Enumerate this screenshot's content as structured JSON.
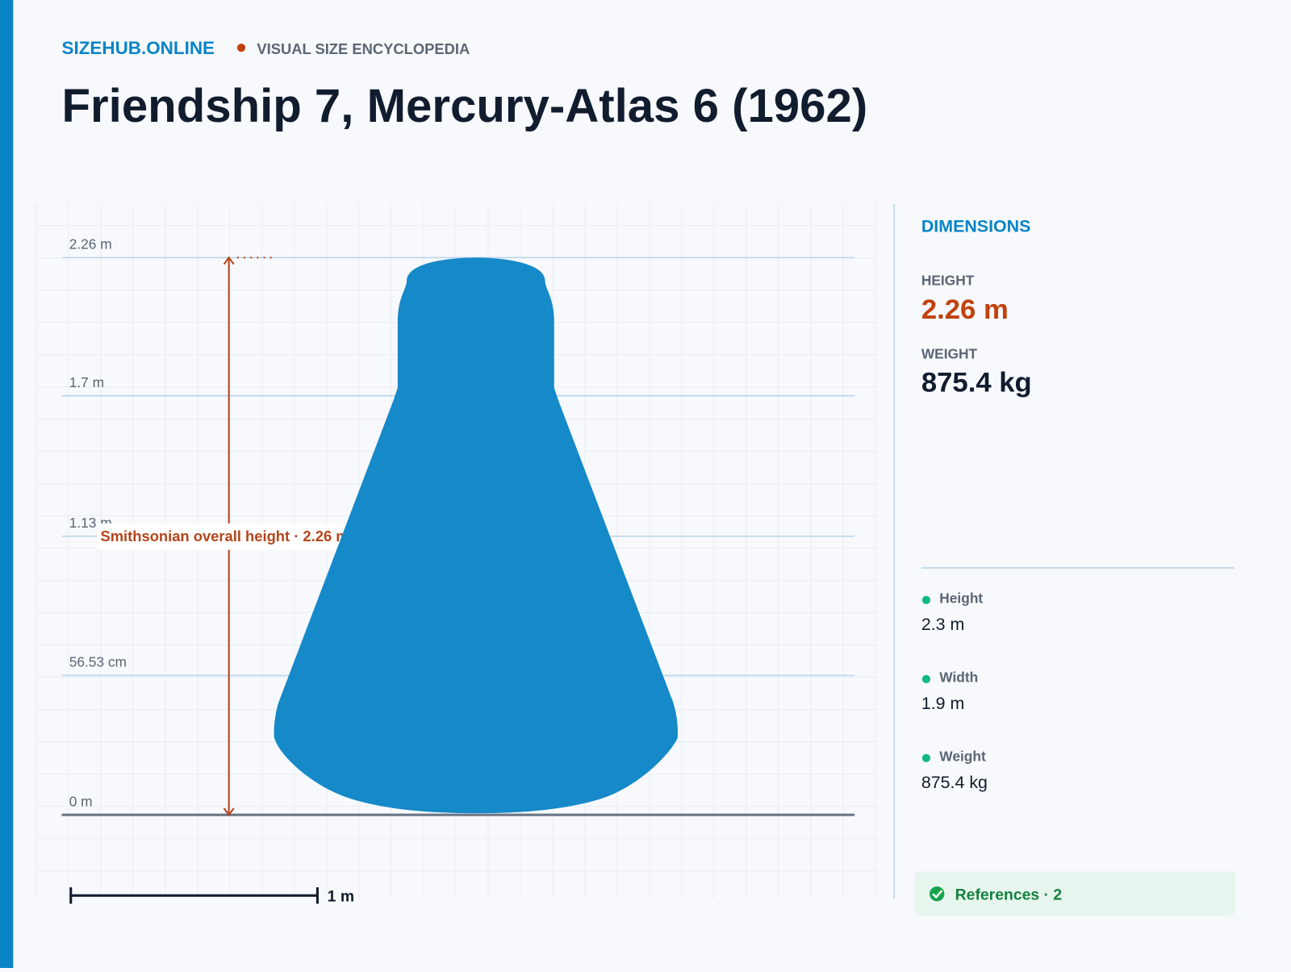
{
  "header": {
    "brand": "SIZEHUB.ONLINE",
    "tagline": "VISUAL SIZE ENCYCLOPEDIA",
    "title": "Friendship 7, Mercury-Atlas 6 (1962)"
  },
  "figure": {
    "height": 2.26,
    "ylim": [
      0,
      2.26
    ],
    "ticks": [
      {
        "value": 2.26,
        "label": "2.26 m"
      },
      {
        "value": 1.7,
        "label": "1.7 m"
      },
      {
        "value": 1.13,
        "label": "1.13 m"
      },
      {
        "value": 0.5653,
        "label": "56.53 cm"
      },
      {
        "value": 0,
        "label": "0 m"
      }
    ],
    "annotation": "Smithsonian overall height · 2.26 m",
    "scale_bar": {
      "value": 1,
      "label": "1 m"
    },
    "color": "#1689c8"
  },
  "sidebar": {
    "heading": "DIMENSIONS",
    "height_label": "HEIGHT",
    "height_value": "2.26 m",
    "weight_label": "WEIGHT",
    "weight_value": "875.4 kg",
    "facts": [
      {
        "label": "Height",
        "value": "2.3 m"
      },
      {
        "label": "Width",
        "value": "1.9 m"
      },
      {
        "label": "Weight",
        "value": "875.4 kg"
      }
    ],
    "references": "References · 2"
  }
}
